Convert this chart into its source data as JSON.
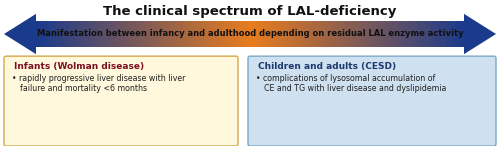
{
  "title": "The clinical spectrum of LAL-deficiency",
  "title_fontsize": 9.5,
  "title_color": "#111111",
  "arrow_text": "Manifestation between infancy and adulthood depending on residual LAL enzyme activity",
  "arrow_text_color": "#111111",
  "arrow_color_outer": "#1a3a8c",
  "arrow_color_inner": "#e87c1e",
  "left_box_title": "Infants (Wolman disease)",
  "left_box_title_color": "#7b1020",
  "left_box_text_line1": "rapidly progressive liver disease with liver",
  "left_box_text_line2": "failure and mortality <6 months",
  "left_box_text_color": "#222222",
  "left_box_bg": "#fff8dd",
  "left_box_edge": "#d4a84b",
  "right_box_title": "Children and adults (CESD)",
  "right_box_title_color": "#1a3a6c",
  "right_box_text_line1": "complications of lysosomal accumulation of",
  "right_box_text_line2": "CE and TG with liver disease and dyslipidemia",
  "right_box_text_color": "#222222",
  "right_box_bg": "#cfe0f0",
  "right_box_edge": "#7aaac8",
  "bullet": "•",
  "bg_color": "#ffffff",
  "fig_width": 5.0,
  "fig_height": 1.46,
  "dpi": 100
}
